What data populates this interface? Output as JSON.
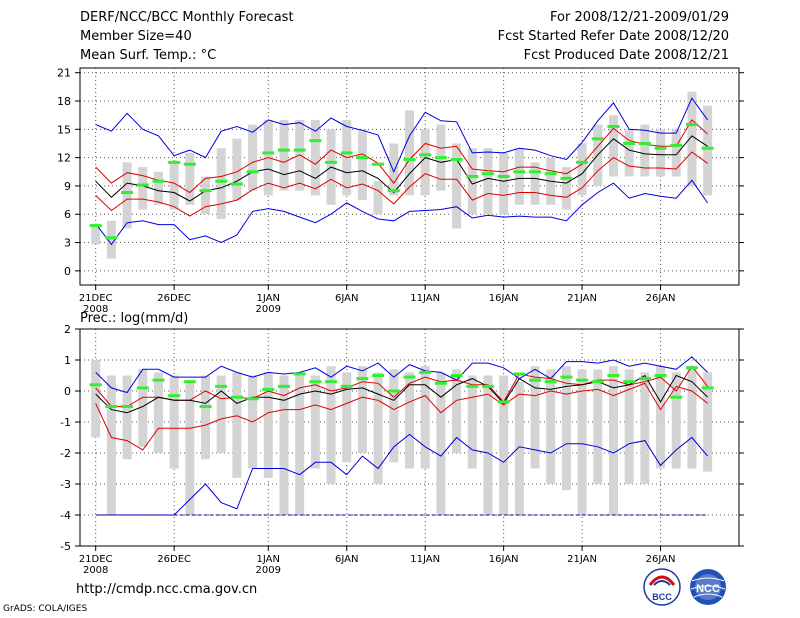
{
  "header": {
    "title": "DERF/NCC/BCC Monthly Forecast",
    "member_size": "Member Size=40",
    "variable": "Mean Surf. Temp.: °C",
    "period": "For 2008/12/21-2009/01/29",
    "started": "Fcst Started Refer Date 2008/12/20",
    "produced": "Fcst Produced Date 2008/12/21"
  },
  "footer": {
    "url": "http://cmdp.ncc.cma.gov.cn",
    "credit": "GrADS: COLA/IGES"
  },
  "logos": {
    "bcc_text": "BCC",
    "ncc_text": "NCC"
  },
  "colors": {
    "box": "#d4d4d4",
    "mean": "#000000",
    "quartile": "#e00000",
    "extreme": "#0000e0",
    "observed": "#33ee33",
    "grid": "#555555"
  },
  "chart_data": [
    {
      "type": "box-ensemble",
      "title": "Mean Surf. Temp.: °C",
      "ylim": [
        -1.5,
        21.5
      ],
      "yticks": [
        0,
        3,
        6,
        9,
        12,
        15,
        18,
        21
      ],
      "x_tick_days": [
        1,
        6,
        12,
        17,
        22,
        27,
        32,
        37
      ],
      "x_tick_labels": [
        "21DEC",
        "26DEC",
        "1JAN",
        "6JAN",
        "11JAN",
        "16JAN",
        "21JAN",
        "26JAN"
      ],
      "x_sub_labels": [
        "2008",
        "",
        "2009",
        "",
        "",
        "",
        "",
        ""
      ],
      "days": [
        1,
        2,
        3,
        4,
        5,
        6,
        7,
        8,
        9,
        10,
        11,
        12,
        13,
        14,
        15,
        16,
        17,
        18,
        19,
        20,
        21,
        22,
        23,
        24,
        25,
        26,
        27,
        28,
        29,
        30,
        31,
        32,
        33,
        34,
        35,
        36,
        37,
        38,
        39,
        40
      ],
      "box_low": [
        2.8,
        1.3,
        4.5,
        6.5,
        7,
        6.5,
        7,
        6,
        5.5,
        7.5,
        8.5,
        8,
        8.5,
        8.5,
        8,
        7,
        8,
        7.5,
        6,
        8,
        8,
        8,
        8.5,
        4.5,
        6,
        6,
        6,
        7,
        7,
        7,
        6.5,
        8,
        9,
        10,
        10,
        10,
        10,
        10,
        9,
        8
      ],
      "box_high": [
        4.8,
        5.3,
        11.5,
        11,
        10.5,
        11.5,
        12.5,
        10,
        13,
        14,
        15.5,
        16,
        16,
        16,
        16,
        15,
        16,
        15,
        9.5,
        13.5,
        17,
        15,
        15.5,
        13.5,
        13,
        13,
        12.5,
        13,
        11.5,
        12,
        11,
        13.5,
        15.5,
        16.5,
        15,
        15.5,
        15,
        15,
        19,
        17.5
      ],
      "series": [
        {
          "name": "ens-max",
          "color": "extreme",
          "values": [
            15.5,
            14.8,
            16.7,
            15,
            14.3,
            12.2,
            12.8,
            12,
            14.8,
            15.3,
            14.7,
            16,
            15.5,
            15.7,
            14.8,
            16.2,
            15.3,
            14.9,
            14.4,
            10.5,
            14.3,
            16.8,
            15.9,
            15.8,
            12.5,
            12.6,
            12.5,
            13,
            12.8,
            12.2,
            11.8,
            13.6,
            15.9,
            17.8,
            15,
            14.9,
            14.6,
            14.6,
            18.3,
            16
          ]
        },
        {
          "name": "upper-quart",
          "color": "quartile",
          "values": [
            11,
            9.3,
            10.4,
            10.1,
            9.6,
            9.3,
            8.3,
            9.8,
            10,
            10.5,
            11.5,
            12,
            11.5,
            12.3,
            11.3,
            12.8,
            12,
            12.4,
            11.4,
            9.3,
            11.8,
            13.5,
            13,
            13.2,
            10.8,
            10.6,
            10.5,
            11,
            11,
            10.6,
            10.3,
            11.3,
            13.2,
            15.1,
            13.8,
            13.4,
            13.2,
            13.2,
            16,
            14.5
          ]
        },
        {
          "name": "ens-mean",
          "color": "mean",
          "values": [
            9.5,
            7.8,
            9.3,
            9,
            8.5,
            8.3,
            7.4,
            8.5,
            8.8,
            9.5,
            10.5,
            10.8,
            10.2,
            10.6,
            9.8,
            11,
            10.4,
            10.6,
            9.8,
            8.3,
            10.3,
            12,
            11.5,
            11.8,
            9.2,
            9.8,
            9.5,
            9.8,
            9.8,
            9.5,
            9.3,
            10.3,
            12.3,
            14,
            12.8,
            12.4,
            12.3,
            12.3,
            14.3,
            13.2
          ]
        },
        {
          "name": "lower-quart",
          "color": "quartile",
          "values": [
            8,
            6.4,
            7.6,
            7.6,
            7.3,
            6.8,
            5.8,
            6.8,
            7.1,
            7.5,
            8.6,
            9.3,
            8.8,
            9.3,
            8.7,
            9.7,
            8.8,
            9.2,
            8.5,
            7.1,
            8.9,
            10.3,
            9.7,
            9.7,
            7.5,
            8.2,
            8,
            8.3,
            8.3,
            8,
            7.8,
            8.8,
            10.6,
            12,
            11.1,
            10.9,
            10.9,
            10.8,
            12.6,
            11.4
          ]
        },
        {
          "name": "ens-min",
          "color": "extreme",
          "values": [
            5,
            2.8,
            5.1,
            5.3,
            4.9,
            4.9,
            3.3,
            3.7,
            3,
            3.8,
            6.3,
            6.6,
            6.3,
            5.7,
            5.1,
            6,
            7.2,
            6.3,
            5.5,
            5.3,
            6.3,
            6.4,
            6.5,
            6.8,
            5.6,
            5.9,
            5.7,
            5.8,
            5.7,
            5.7,
            5.3,
            7,
            8.3,
            9.3,
            7.7,
            8.2,
            7.9,
            7.7,
            9.6,
            7.2
          ]
        }
      ],
      "observed": [
        4.8,
        3.5,
        8.3,
        9.1,
        9.5,
        11.5,
        11.3,
        8.5,
        9.5,
        9.2,
        10.5,
        12.5,
        12.8,
        12.8,
        13.8,
        11.5,
        12.5,
        12,
        11.3,
        8.5,
        11.8,
        12.3,
        12,
        11.8,
        10,
        10.3,
        10,
        10.5,
        10.5,
        10.3,
        9.8,
        11.5,
        14,
        15.3,
        13.5,
        13.5,
        13,
        13.3,
        15.5,
        13
      ]
    },
    {
      "type": "box-ensemble",
      "title": "Prec.: log(mm/d)",
      "ylim": [
        -5,
        2
      ],
      "yticks": [
        -5,
        -4,
        -3,
        -2,
        -1,
        0,
        1,
        2
      ],
      "x_tick_days": [
        1,
        6,
        12,
        17,
        22,
        27,
        32,
        37
      ],
      "x_tick_labels": [
        "21DEC",
        "26DEC",
        "1JAN",
        "6JAN",
        "11JAN",
        "16JAN",
        "21JAN",
        "26JAN"
      ],
      "x_sub_labels": [
        "2008",
        "",
        "2009",
        "",
        "",
        "",
        "",
        ""
      ],
      "days": [
        1,
        2,
        3,
        4,
        5,
        6,
        7,
        8,
        9,
        10,
        11,
        12,
        13,
        14,
        15,
        16,
        17,
        18,
        19,
        20,
        21,
        22,
        23,
        24,
        25,
        26,
        27,
        28,
        29,
        30,
        31,
        32,
        33,
        34,
        35,
        36,
        37,
        38,
        39,
        40
      ],
      "box_low": [
        -1.5,
        -4,
        -2.2,
        -1.8,
        -2,
        -2.5,
        -4,
        -2.2,
        -2,
        -2.8,
        -2.5,
        -2.8,
        -4,
        -4,
        -2.5,
        -3,
        -2.3,
        -2,
        -3,
        -2.3,
        -2.5,
        -2.5,
        -4,
        -2,
        -2.5,
        -4,
        -4,
        -4,
        -2.5,
        -3,
        -3.2,
        -4,
        -3,
        -4,
        -3,
        -3,
        -2.5,
        -2.5,
        -2.5,
        -2.6
      ],
      "box_high": [
        1,
        0.5,
        0.5,
        0.7,
        0.6,
        0.5,
        0.3,
        0.5,
        0.5,
        0.6,
        0.5,
        0.6,
        0.5,
        0.5,
        0.5,
        0.8,
        0.6,
        0.8,
        0.6,
        0.7,
        0.6,
        0.8,
        0.6,
        0.7,
        0.5,
        0.5,
        0.5,
        0.3,
        0.8,
        0.7,
        0.8,
        0.7,
        0.7,
        0.8,
        0.7,
        0.6,
        0.8,
        0.6,
        0.8,
        0.6
      ],
      "series": [
        {
          "name": "ens-max",
          "color": "extreme",
          "values": [
            0.6,
            0.1,
            -0.05,
            0.7,
            0.7,
            0.45,
            0.45,
            0.45,
            0.8,
            0.6,
            0.45,
            0.6,
            0.55,
            0.6,
            0.75,
            0.45,
            0.8,
            0.65,
            0.9,
            0.45,
            0.85,
            0.65,
            0.6,
            0.35,
            0.9,
            0.9,
            0.75,
            0.4,
            0.7,
            0.4,
            0.95,
            0.95,
            0.9,
            1,
            0.8,
            0.9,
            0.8,
            0.7,
            1.1,
            0.6
          ]
        },
        {
          "name": "upper-quart",
          "color": "quartile",
          "values": [
            0.1,
            -0.5,
            -0.5,
            -0.2,
            -0.2,
            -0.3,
            -0.3,
            0,
            -0.25,
            -0.2,
            -0.25,
            0,
            -0.15,
            0.1,
            0.2,
            0,
            0.1,
            0.3,
            0.25,
            -0.2,
            0.25,
            0.45,
            0.3,
            0.35,
            0.2,
            0.2,
            -0.35,
            0.55,
            0.45,
            0.4,
            0.25,
            0.2,
            0.35,
            0.35,
            0.2,
            0.3,
            0.45,
            0,
            0.8,
            0.15
          ]
        },
        {
          "name": "ens-mean",
          "color": "mean",
          "values": [
            -0.1,
            -0.6,
            -0.7,
            -0.5,
            -0.2,
            -0.3,
            -0.3,
            -0.4,
            0,
            -0.4,
            -0.2,
            -0.2,
            -0.3,
            -0.1,
            0,
            -0.1,
            0.05,
            0.1,
            -0.1,
            -0.3,
            0.2,
            0.2,
            -0.2,
            0.2,
            0.4,
            0.15,
            -0.4,
            0.4,
            0.1,
            0.05,
            0.15,
            0.2,
            0.3,
            0.1,
            0.2,
            0.5,
            -0.35,
            0.5,
            0.3,
            -0.2
          ]
        },
        {
          "name": "lower-quart",
          "color": "quartile",
          "values": [
            -0.4,
            -1.5,
            -1.6,
            -1.9,
            -1.2,
            -1.2,
            -1.2,
            -1.1,
            -0.9,
            -0.8,
            -1,
            -0.7,
            -0.6,
            -0.6,
            -0.45,
            -0.6,
            -0.4,
            -0.2,
            -0.3,
            -0.6,
            -0.35,
            -0.15,
            -0.7,
            -0.3,
            -0.2,
            -0.1,
            -0.45,
            -0.1,
            -0.15,
            0,
            -0.1,
            0,
            0.05,
            -0.15,
            0.05,
            0.25,
            -0.6,
            0.15,
            0,
            -0.4
          ]
        },
        {
          "name": "ens-min",
          "color": "extreme",
          "values": [
            -4,
            -4,
            -4,
            -4,
            -4,
            -4,
            -3.5,
            -3,
            -3.6,
            -3.8,
            -2.5,
            -2.5,
            -2.5,
            -2.7,
            -2.3,
            -2.3,
            -2.7,
            -2.1,
            -2.5,
            -1.8,
            -1.4,
            -1.8,
            -2.1,
            -1.5,
            -1.9,
            -2,
            -2.3,
            -1.8,
            -1.9,
            -2,
            -1.7,
            -1.7,
            -1.8,
            -2,
            -1.7,
            -1.6,
            -2.4,
            -1.9,
            -1.5,
            -2.1
          ]
        }
      ],
      "observed": [
        0.2,
        -0.5,
        -0.5,
        0.1,
        0.35,
        -0.15,
        0.3,
        -0.5,
        0.15,
        -0.2,
        -0.25,
        0.05,
        0.15,
        0.55,
        0.3,
        0.3,
        0.15,
        0.4,
        0.5,
        0,
        0.45,
        0.6,
        0.25,
        0.5,
        0.15,
        0.15,
        -0.35,
        0.55,
        0.35,
        0.3,
        0.45,
        0.35,
        0.3,
        0.5,
        0.3,
        0.4,
        0.5,
        -0.2,
        0.75,
        0.1
      ]
    }
  ]
}
